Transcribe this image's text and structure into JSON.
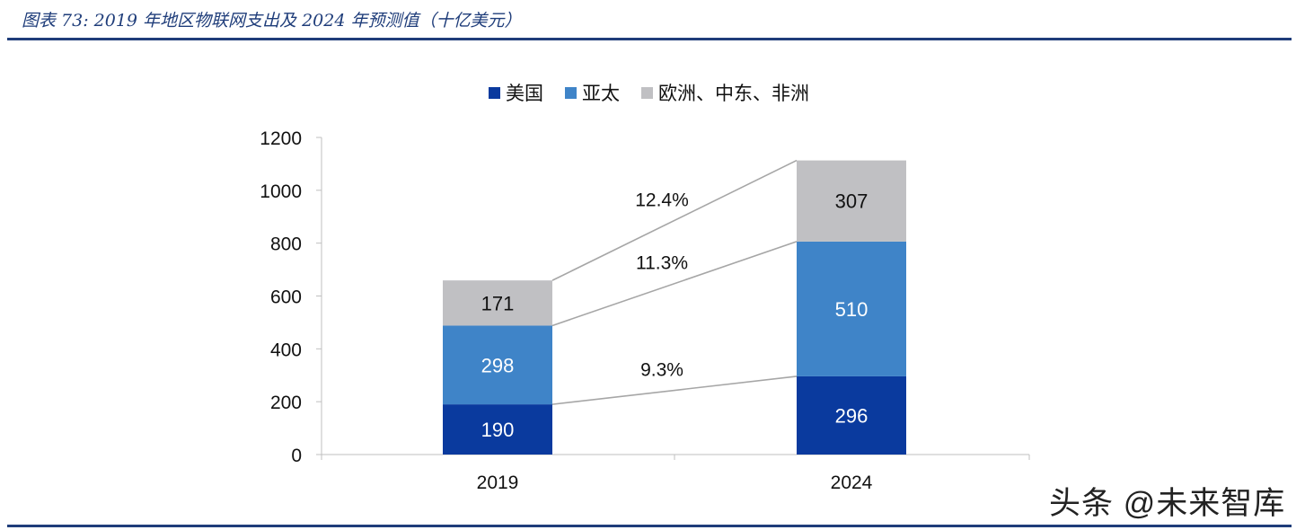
{
  "page": {
    "title": "图表 73:  2019 年地区物联网支出及 2024 年预测值（十亿美元）",
    "watermark": "头条 @未来智库"
  },
  "chart_data": {
    "type": "bar",
    "stacked": true,
    "categories": [
      "2019",
      "2024"
    ],
    "series": [
      {
        "name": "美国",
        "values": [
          190,
          296
        ],
        "color": "#0a3a9e"
      },
      {
        "name": "亚太",
        "values": [
          298,
          510
        ],
        "color": "#3f84c8"
      },
      {
        "name": "欧洲、中东、非洲",
        "values": [
          171,
          307
        ],
        "color": "#c0c0c3"
      }
    ],
    "growth_labels": [
      {
        "series": "美国",
        "text": "9.3%"
      },
      {
        "series": "亚太",
        "text": "11.3%"
      },
      {
        "series": "欧洲、中东、非洲",
        "text": "12.4%"
      }
    ],
    "ylim": [
      0,
      1200
    ],
    "yticks": [
      0,
      200,
      400,
      600,
      800,
      1000,
      1200
    ],
    "legend_position": "top-center",
    "grid": false
  }
}
